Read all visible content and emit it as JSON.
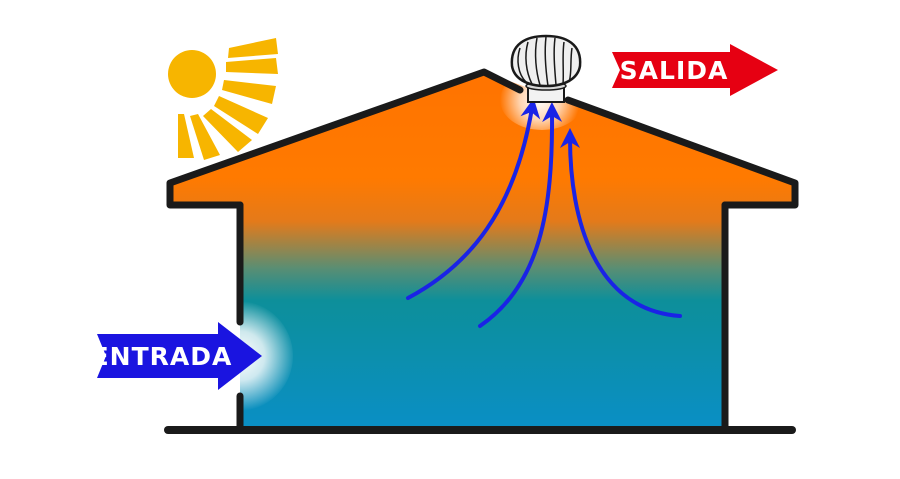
{
  "labels": {
    "inlet": "ENTRADA",
    "outlet": "SALIDA"
  },
  "colors": {
    "inlet_arrow": "#1a14e0",
    "outlet_arrow": "#e60012",
    "airflow": "#1a23e6",
    "house_outline": "#1a1a1a",
    "hot_air": "#ff7300",
    "cool_air": "#0a8fc4",
    "sun": "#f7b500"
  },
  "icons": {
    "sun": "sun-icon",
    "turbine": "wind-turbine-ventilator-icon"
  }
}
